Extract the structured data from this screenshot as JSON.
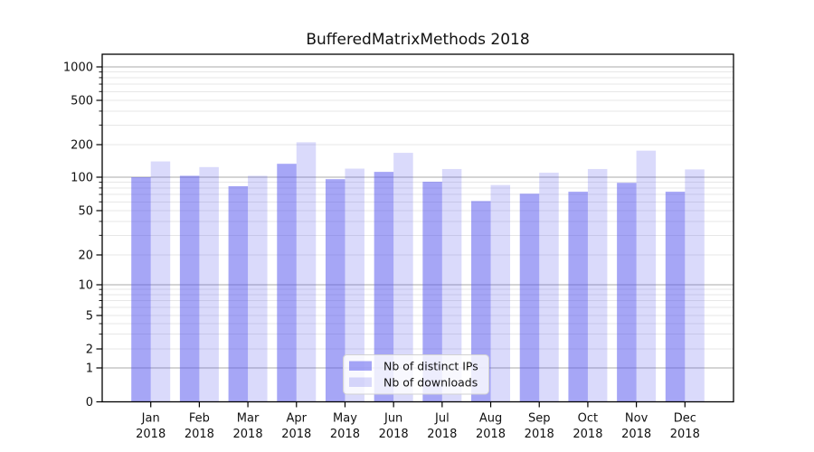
{
  "figure": {
    "title": "BufferedMatrixMethods 2018"
  },
  "chart_data": {
    "type": "bar",
    "title": "BufferedMatrixMethods 2018",
    "categories": [
      "Jan",
      "Feb",
      "Mar",
      "Apr",
      "May",
      "Jun",
      "Jul",
      "Aug",
      "Sep",
      "Oct",
      "Nov",
      "Dec"
    ],
    "category_year": "2018",
    "series": [
      {
        "name": "Nb of distinct IPs",
        "color": "rgba(85,85,238,0.52)",
        "values": [
          100,
          103,
          83,
          133,
          96,
          112,
          91,
          61,
          71,
          74,
          89,
          74
        ]
      },
      {
        "name": "Nb of downloads",
        "color": "rgba(85,85,238,0.22)",
        "values": [
          140,
          124,
          103,
          210,
          120,
          168,
          119,
          85,
          110,
          119,
          176,
          118
        ]
      }
    ],
    "y_axis": {
      "scale": "symlog",
      "tick_values": [
        0,
        1,
        2,
        5,
        10,
        20,
        50,
        100,
        200,
        500,
        1000
      ],
      "tick_labels": [
        "0",
        "1",
        "2",
        "5",
        "10",
        "20",
        "50",
        "100",
        "200",
        "500",
        "1000"
      ],
      "minor_tick_values": [
        3,
        4,
        6,
        7,
        8,
        9,
        30,
        40,
        60,
        70,
        80,
        90,
        300,
        400,
        600,
        700,
        800,
        900
      ],
      "range": [
        0,
        1300
      ]
    },
    "x_axis": {
      "tick_label_line2": "2018"
    },
    "legend": {
      "position": "lower center",
      "entries": [
        "Nb of distinct IPs",
        "Nb of downloads"
      ]
    },
    "grid": "horizontal-only",
    "colors": {
      "bar_dark": "rgba(85,85,238,0.52)",
      "bar_light": "rgba(85,85,238,0.22)",
      "grid_major": "#a9a9a9",
      "grid_minor": "#e7e7e7",
      "spine": "#000000",
      "text": "#111111",
      "legend_border": "#d2d2d2",
      "legend_bg": "rgba(255,255,255,0.8)"
    }
  }
}
